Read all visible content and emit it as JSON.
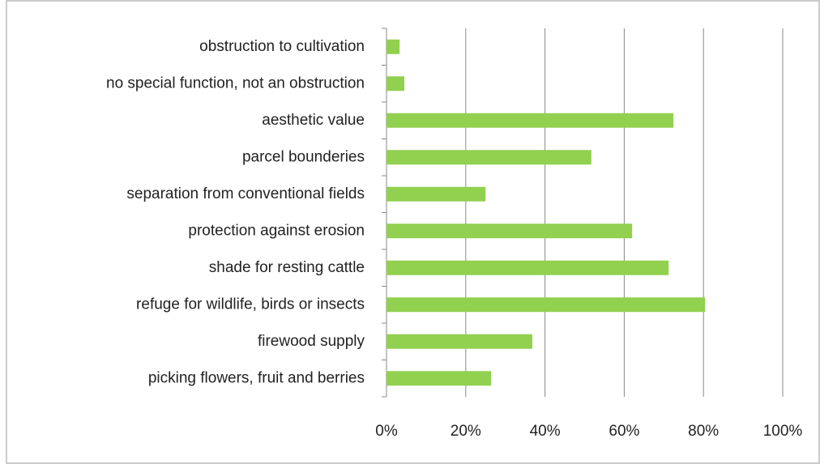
{
  "chart_data": {
    "type": "bar",
    "orientation": "horizontal",
    "categories": [
      "obstruction to cultivation",
      "no special function, not an obstruction",
      "aesthetic value",
      "parcel bounderies",
      "separation from conventional fields",
      "protection against erosion",
      "shade for resting cattle",
      "refuge for wildlife, birds or insects",
      "firewood supply",
      "picking flowers, fruit and berries"
    ],
    "values": [
      3.3,
      4.5,
      72.4,
      51.7,
      25,
      62,
      71.2,
      80.4,
      36.8,
      26.4
    ],
    "color": "#92d050",
    "xlim": [
      0,
      100
    ],
    "xticks": [
      {
        "value": 0,
        "label": "0%"
      },
      {
        "value": 20,
        "label": "20%"
      },
      {
        "value": 40,
        "label": "40%"
      },
      {
        "value": 60,
        "label": "60%"
      },
      {
        "value": 80,
        "label": "80%"
      },
      {
        "value": 100,
        "label": "100%"
      }
    ],
    "grid": true
  }
}
